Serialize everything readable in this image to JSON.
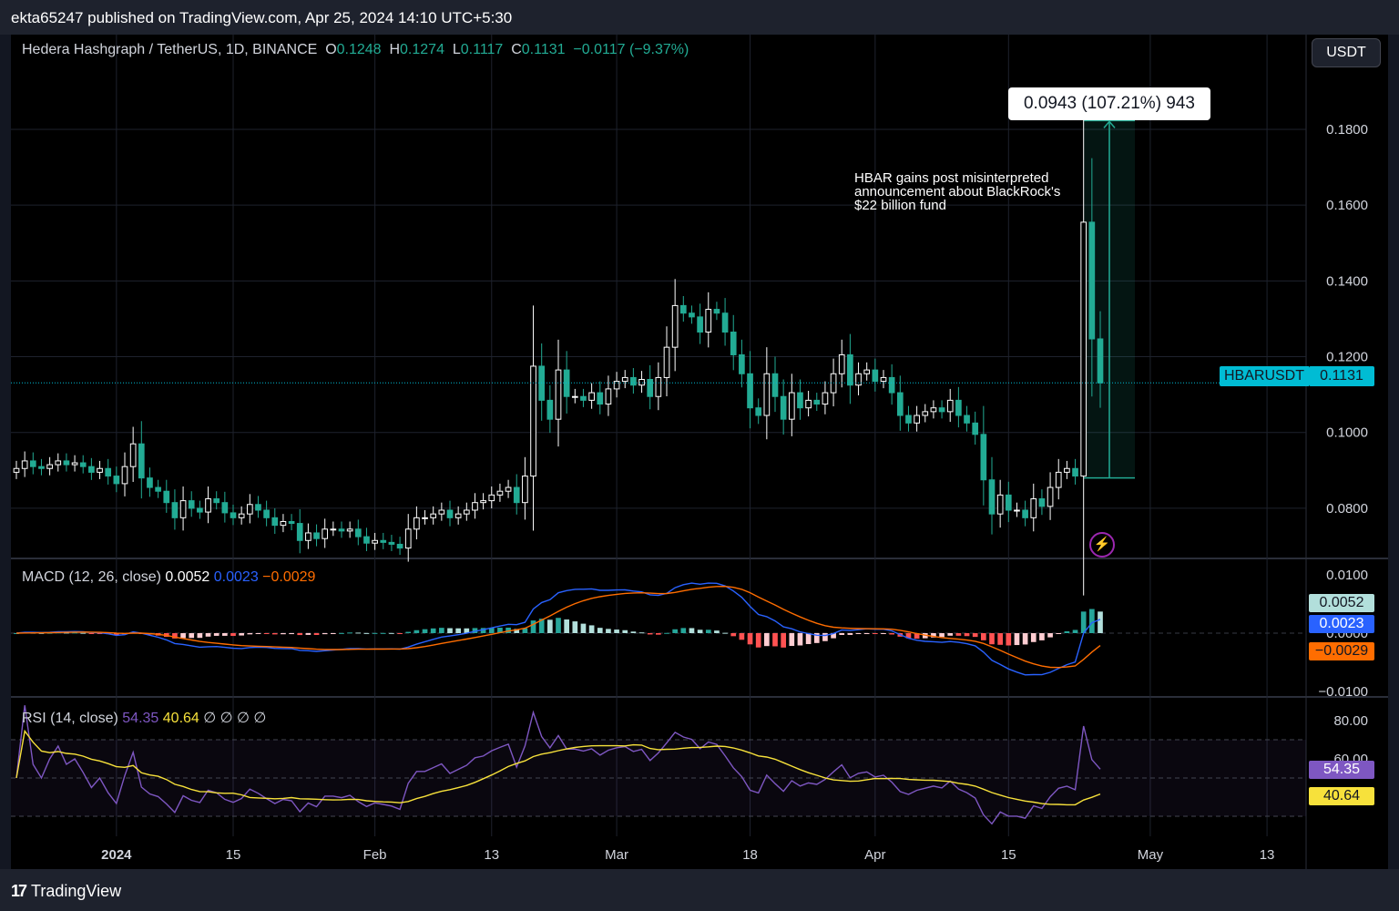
{
  "header": {
    "published": "ekta65247 published on TradingView.com, Apr 25, 2024 14:10 UTC+5:30"
  },
  "legend": {
    "title": "Hedera Hashgraph / TetherUS, 1D, BINANCE",
    "o_label": "O",
    "o": "0.1248",
    "h_label": "H",
    "h": "0.1274",
    "l_label": "L",
    "l": "0.1117",
    "c_label": "C",
    "c": "0.1131",
    "change": "−0.0117 (−9.37%)"
  },
  "currency_button": "USDT",
  "measure_label": "0.0943 (107.21%) 943",
  "annotation": [
    "HBAR gains post misinterpreted",
    "announcement about BlackRock's",
    "$22 billion fund"
  ],
  "symbol_tag": "HBARUSDT",
  "last_price": "0.1131",
  "macd": {
    "label": "MACD (12, 26, close)",
    "hist": "0.0052",
    "macd": "0.0023",
    "signal": "−0.0029"
  },
  "rsi": {
    "label": "RSI (14, close)",
    "rsi": "54.35",
    "ma": "40.64",
    "nulls": "∅ ∅ ∅ ∅"
  },
  "footer": {
    "brand": "TradingView",
    "logo": "17"
  },
  "colors": {
    "up": "#ffffff",
    "down": "#22ab94",
    "macd": "#2962ff",
    "signal": "#ff6d00",
    "rsi": "#7e57c2",
    "rsi_ma": "#f7e13b",
    "accent": "#00bcd4"
  },
  "chart_data": [
    {
      "type": "candlestick",
      "symbol": "HBARUSDT",
      "x_ticks": [
        "2024",
        "15",
        "Feb",
        "13",
        "Mar",
        "18",
        "Apr",
        "15",
        "May",
        "13"
      ],
      "y_ticks": [
        "0.0800",
        "0.1000",
        "0.1200",
        "0.1400",
        "0.1600",
        "0.1800"
      ],
      "ylim": [
        0.067,
        0.205
      ],
      "measure": {
        "from": 0.088,
        "to": 0.1823
      },
      "close_series": [
        0.0905,
        0.0925,
        0.091,
        0.0905,
        0.0915,
        0.0925,
        0.0915,
        0.092,
        0.091,
        0.0895,
        0.0905,
        0.0885,
        0.0865,
        0.091,
        0.097,
        0.088,
        0.0855,
        0.0845,
        0.0815,
        0.0775,
        0.082,
        0.08,
        0.079,
        0.0825,
        0.0815,
        0.0788,
        0.0775,
        0.0785,
        0.081,
        0.0795,
        0.0775,
        0.0755,
        0.0765,
        0.076,
        0.0715,
        0.0735,
        0.072,
        0.0745,
        0.0745,
        0.074,
        0.0745,
        0.0725,
        0.0708,
        0.0715,
        0.071,
        0.0705,
        0.0695,
        0.0745,
        0.0775,
        0.0775,
        0.0785,
        0.0795,
        0.0775,
        0.0785,
        0.0795,
        0.0815,
        0.082,
        0.0835,
        0.0845,
        0.0855,
        0.0815,
        0.0885,
        0.1175,
        0.1085,
        0.1035,
        0.1165,
        0.1095,
        0.1095,
        0.1085,
        0.1105,
        0.1075,
        0.1115,
        0.1135,
        0.1145,
        0.1125,
        0.114,
        0.1095,
        0.1145,
        0.1225,
        0.1335,
        0.1315,
        0.1305,
        0.1265,
        0.1325,
        0.1315,
        0.1265,
        0.1205,
        0.1155,
        0.1065,
        0.1045,
        0.1155,
        0.1095,
        0.1035,
        0.1105,
        0.1065,
        0.1085,
        0.1075,
        0.1105,
        0.1155,
        0.1205,
        0.1125,
        0.1155,
        0.1165,
        0.1135,
        0.1145,
        0.1105,
        0.1045,
        0.1025,
        0.1045,
        0.1055,
        0.1065,
        0.1055,
        0.1085,
        0.1045,
        0.1025,
        0.0995,
        0.0875,
        0.0785,
        0.0835,
        0.0795,
        0.0795,
        0.0775,
        0.0825,
        0.0805,
        0.0855,
        0.0895,
        0.0905,
        0.0885,
        0.1555,
        0.1247,
        0.1131
      ]
    },
    {
      "type": "bar+line",
      "name": "MACD (12, 26, close)",
      "y_ticks": [
        "0.0100",
        "0.0000",
        "−0.0100"
      ],
      "last": {
        "histogram": 0.0052,
        "macd": 0.0023,
        "signal": -0.0029
      }
    },
    {
      "type": "line",
      "name": "RSI (14, close)",
      "y_ticks": [
        "80.00",
        "60.00"
      ],
      "bands": [
        70,
        30
      ],
      "last": {
        "rsi": 54.35,
        "rsi_ma": 40.64
      }
    }
  ]
}
